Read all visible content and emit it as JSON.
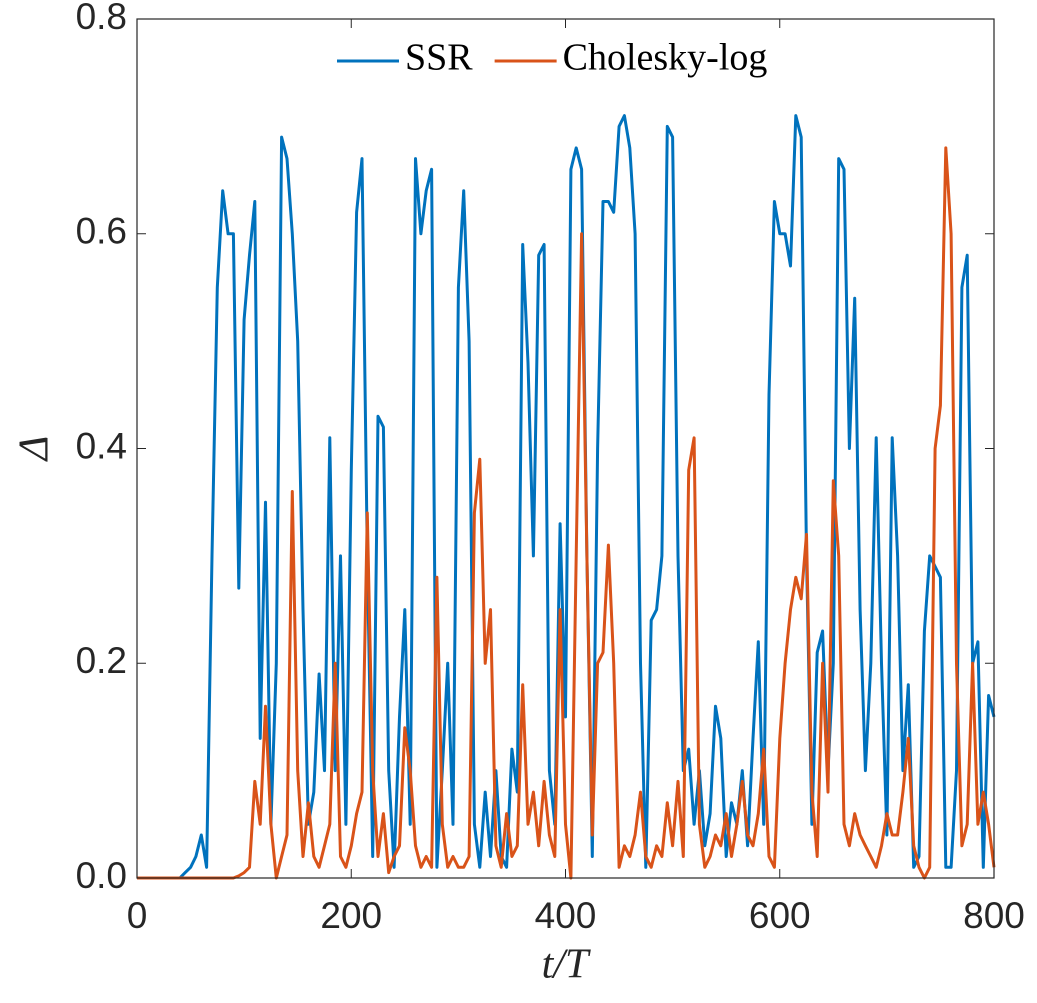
{
  "chart_data": {
    "type": "line",
    "xlabel": "t/T",
    "ylabel": "Δ",
    "x": [
      0,
      5,
      10,
      15,
      20,
      25,
      30,
      35,
      40,
      45,
      50,
      55,
      60,
      65,
      70,
      75,
      80,
      85,
      90,
      95,
      100,
      105,
      110,
      115,
      120,
      125,
      130,
      135,
      140,
      145,
      150,
      155,
      160,
      165,
      170,
      175,
      180,
      185,
      190,
      195,
      200,
      205,
      210,
      215,
      220,
      225,
      230,
      235,
      240,
      245,
      250,
      255,
      260,
      265,
      270,
      275,
      280,
      285,
      290,
      295,
      300,
      305,
      310,
      315,
      320,
      325,
      330,
      335,
      340,
      345,
      350,
      355,
      360,
      365,
      370,
      375,
      380,
      385,
      390,
      395,
      400,
      405,
      410,
      415,
      420,
      425,
      430,
      435,
      440,
      445,
      450,
      455,
      460,
      465,
      470,
      475,
      480,
      485,
      490,
      495,
      500,
      505,
      510,
      515,
      520,
      525,
      530,
      535,
      540,
      545,
      550,
      555,
      560,
      565,
      570,
      575,
      580,
      585,
      590,
      595,
      600,
      605,
      610,
      615,
      620,
      625,
      630,
      635,
      640,
      645,
      650,
      655,
      660,
      665,
      670,
      675,
      680,
      685,
      690,
      695,
      700,
      705,
      710,
      715,
      720,
      725,
      730,
      735,
      740,
      745,
      750,
      755,
      760,
      765,
      770,
      775,
      780,
      785,
      790,
      795,
      800
    ],
    "series": [
      {
        "name": "SSR",
        "color": "#0072BD",
        "values": [
          0,
          0,
          0,
          0,
          0,
          0,
          0,
          0,
          0,
          0.005,
          0.01,
          0.02,
          0.04,
          0.01,
          0.3,
          0.55,
          0.64,
          0.6,
          0.6,
          0.27,
          0.52,
          0.58,
          0.63,
          0.13,
          0.35,
          0.05,
          0.2,
          0.69,
          0.67,
          0.6,
          0.5,
          0.25,
          0.05,
          0.08,
          0.19,
          0.1,
          0.41,
          0.1,
          0.3,
          0.05,
          0.38,
          0.62,
          0.67,
          0.3,
          0.02,
          0.43,
          0.42,
          0.1,
          0.01,
          0.15,
          0.25,
          0.05,
          0.67,
          0.6,
          0.64,
          0.66,
          0.01,
          0.1,
          0.2,
          0.05,
          0.55,
          0.64,
          0.5,
          0.05,
          0.01,
          0.08,
          0.02,
          0.1,
          0.02,
          0.01,
          0.12,
          0.08,
          0.59,
          0.48,
          0.3,
          0.58,
          0.59,
          0.1,
          0.05,
          0.33,
          0.15,
          0.66,
          0.68,
          0.66,
          0.3,
          0.02,
          0.4,
          0.63,
          0.63,
          0.62,
          0.7,
          0.71,
          0.68,
          0.6,
          0.2,
          0.01,
          0.24,
          0.25,
          0.3,
          0.7,
          0.69,
          0.3,
          0.1,
          0.12,
          0.05,
          0.1,
          0.03,
          0.06,
          0.16,
          0.13,
          0.02,
          0.07,
          0.05,
          0.1,
          0.03,
          0.13,
          0.22,
          0.05,
          0.45,
          0.63,
          0.6,
          0.6,
          0.57,
          0.71,
          0.69,
          0.3,
          0.05,
          0.21,
          0.23,
          0.1,
          0.2,
          0.67,
          0.66,
          0.4,
          0.54,
          0.25,
          0.1,
          0.2,
          0.41,
          0.2,
          0.04,
          0.41,
          0.3,
          0.1,
          0.18,
          0.01,
          0.02,
          0.23,
          0.3,
          0.29,
          0.28,
          0.01,
          0.01,
          0.1,
          0.55,
          0.58,
          0.2,
          0.22,
          0.01,
          0.17,
          0.15
        ]
      },
      {
        "name": "Cholesky-log",
        "color": "#D95319",
        "values": [
          0,
          0,
          0,
          0,
          0,
          0,
          0,
          0,
          0,
          0,
          0,
          0,
          0,
          0,
          0,
          0,
          0,
          0,
          0,
          0.002,
          0.005,
          0.01,
          0.09,
          0.05,
          0.16,
          0.05,
          0,
          0.02,
          0.04,
          0.36,
          0.1,
          0.02,
          0.07,
          0.02,
          0.01,
          0.03,
          0.05,
          0.2,
          0.02,
          0.01,
          0.03,
          0.06,
          0.08,
          0.34,
          0.1,
          0.02,
          0.06,
          0.005,
          0.02,
          0.03,
          0.14,
          0.1,
          0.03,
          0.01,
          0.02,
          0.01,
          0.28,
          0.05,
          0.01,
          0.02,
          0.01,
          0.01,
          0.02,
          0.34,
          0.39,
          0.2,
          0.25,
          0.03,
          0.01,
          0.06,
          0.02,
          0.03,
          0.18,
          0.05,
          0.08,
          0.03,
          0.09,
          0.04,
          0.02,
          0.25,
          0.05,
          0,
          0.3,
          0.6,
          0.3,
          0.04,
          0.2,
          0.21,
          0.31,
          0.2,
          0.01,
          0.03,
          0.02,
          0.04,
          0.08,
          0.02,
          0.01,
          0.03,
          0.02,
          0.07,
          0.03,
          0.09,
          0.02,
          0.38,
          0.41,
          0.05,
          0.01,
          0.02,
          0.04,
          0.03,
          0.06,
          0.02,
          0.05,
          0.09,
          0.04,
          0.03,
          0.06,
          0.12,
          0.02,
          0.01,
          0.13,
          0.2,
          0.25,
          0.28,
          0.26,
          0.32,
          0.08,
          0.02,
          0.2,
          0.08,
          0.37,
          0.3,
          0.05,
          0.03,
          0.06,
          0.04,
          0.03,
          0.02,
          0.01,
          0.03,
          0.06,
          0.04,
          0.04,
          0.08,
          0.13,
          0.03,
          0.01,
          0,
          0.01,
          0.4,
          0.44,
          0.68,
          0.6,
          0.2,
          0.03,
          0.05,
          0.2,
          0.05,
          0.08,
          0.05,
          0.01
        ]
      }
    ],
    "xlim": [
      0,
      800
    ],
    "xticks": [
      0,
      200,
      400,
      600,
      800
    ],
    "ylim": [
      0,
      0.8
    ],
    "yticks": [
      {
        "value": 0,
        "label": "0.0"
      },
      {
        "value": 0.2,
        "label": "0.2"
      },
      {
        "value": 0.4,
        "label": "0.4"
      },
      {
        "value": 0.6,
        "label": "0.6"
      },
      {
        "value": 0.8,
        "label": "0.8"
      }
    ],
    "legend": "top"
  }
}
